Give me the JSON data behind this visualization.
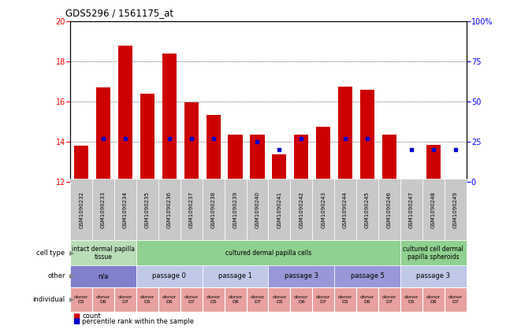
{
  "title": "GDS5296 / 1561175_at",
  "samples": [
    "GSM1090232",
    "GSM1090233",
    "GSM1090234",
    "GSM1090235",
    "GSM1090236",
    "GSM1090237",
    "GSM1090238",
    "GSM1090239",
    "GSM1090240",
    "GSM1090241",
    "GSM1090242",
    "GSM1090243",
    "GSM1090244",
    "GSM1090245",
    "GSM1090246",
    "GSM1090247",
    "GSM1090248",
    "GSM1090249"
  ],
  "counts": [
    13.8,
    16.7,
    18.8,
    16.4,
    18.4,
    15.95,
    15.35,
    14.35,
    14.35,
    13.35,
    14.35,
    14.75,
    16.75,
    16.6,
    14.35,
    12.1,
    13.85,
    12.1
  ],
  "percentiles": [
    null,
    27,
    27,
    null,
    27,
    27,
    27,
    null,
    25,
    20,
    27,
    null,
    27,
    27,
    null,
    20,
    20,
    20
  ],
  "ymin": 12,
  "ymax": 20,
  "yticks": [
    12,
    14,
    16,
    18,
    20
  ],
  "y2ticks": [
    0,
    25,
    50,
    75,
    100
  ],
  "bar_color": "#cc0000",
  "dot_color": "#0000cc",
  "sample_bg_color": "#c0c0c0",
  "cell_type_groups": [
    {
      "label": "intact dermal papilla\ntissue",
      "start": 0,
      "end": 3,
      "color": "#b8ddb8"
    },
    {
      "label": "cultured dermal papilla cells",
      "start": 3,
      "end": 15,
      "color": "#90d090"
    },
    {
      "label": "cultured cell dermal\npapilla spheroids",
      "start": 15,
      "end": 18,
      "color": "#90d090"
    }
  ],
  "other_groups": [
    {
      "label": "n/a",
      "start": 0,
      "end": 3,
      "color": "#8080cc"
    },
    {
      "label": "passage 0",
      "start": 3,
      "end": 6,
      "color": "#c0c8e8"
    },
    {
      "label": "passage 1",
      "start": 6,
      "end": 9,
      "color": "#c0c8e8"
    },
    {
      "label": "passage 3",
      "start": 9,
      "end": 12,
      "color": "#9898d8"
    },
    {
      "label": "passage 5",
      "start": 12,
      "end": 15,
      "color": "#9898d8"
    },
    {
      "label": "passage 3",
      "start": 15,
      "end": 18,
      "color": "#c0c8e8"
    }
  ],
  "individual_groups": [
    {
      "label": "donor\nD5",
      "start": 0,
      "end": 1,
      "color": "#e8a0a0"
    },
    {
      "label": "donor\nD6",
      "start": 1,
      "end": 2,
      "color": "#e8a0a0"
    },
    {
      "label": "donor\nD7",
      "start": 2,
      "end": 3,
      "color": "#e8a0a0"
    },
    {
      "label": "donor\nD5",
      "start": 3,
      "end": 4,
      "color": "#e8a0a0"
    },
    {
      "label": "donor\nD6",
      "start": 4,
      "end": 5,
      "color": "#e8a0a0"
    },
    {
      "label": "donor\nD7",
      "start": 5,
      "end": 6,
      "color": "#e8a0a0"
    },
    {
      "label": "donor\nD5",
      "start": 6,
      "end": 7,
      "color": "#e8a0a0"
    },
    {
      "label": "donor\nD6",
      "start": 7,
      "end": 8,
      "color": "#e8a0a0"
    },
    {
      "label": "donor\nD7",
      "start": 8,
      "end": 9,
      "color": "#e8a0a0"
    },
    {
      "label": "donor\nD5",
      "start": 9,
      "end": 10,
      "color": "#e8a0a0"
    },
    {
      "label": "donor\nD6",
      "start": 10,
      "end": 11,
      "color": "#e8a0a0"
    },
    {
      "label": "donor\nD7",
      "start": 11,
      "end": 12,
      "color": "#e8a0a0"
    },
    {
      "label": "donor\nD5",
      "start": 12,
      "end": 13,
      "color": "#e8a0a0"
    },
    {
      "label": "donor\nD6",
      "start": 13,
      "end": 14,
      "color": "#e8a0a0"
    },
    {
      "label": "donor\nD7",
      "start": 14,
      "end": 15,
      "color": "#e8a0a0"
    },
    {
      "label": "donor\nD5",
      "start": 15,
      "end": 16,
      "color": "#e8a0a0"
    },
    {
      "label": "donor\nD6",
      "start": 16,
      "end": 17,
      "color": "#e8a0a0"
    },
    {
      "label": "donor\nD7",
      "start": 17,
      "end": 18,
      "color": "#e8a0a0"
    }
  ],
  "legend_count_color": "#cc0000",
  "legend_dot_color": "#0000cc",
  "background_color": "#ffffff"
}
